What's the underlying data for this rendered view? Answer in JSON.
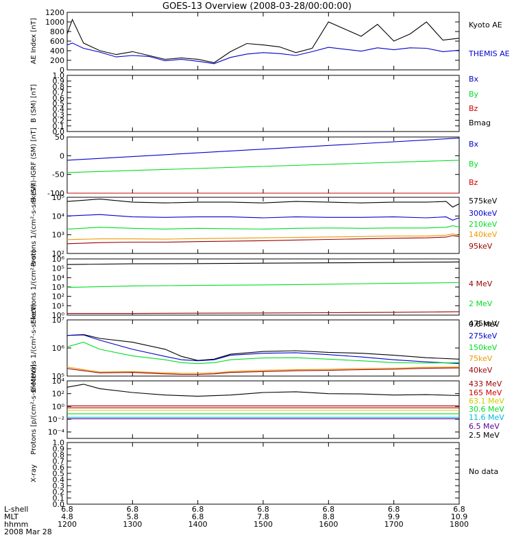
{
  "title": "GOES-13 Overview (2008-03-28/00:00:00)",
  "colors": {
    "black": "#000000",
    "blue": "#0000cc",
    "green": "#00dd22",
    "red": "#cc0000",
    "darkred": "#990000",
    "orange": "#ee9900",
    "yellow": "#cccc00",
    "cyan": "#00bbdd",
    "purple": "#550099",
    "navy": "#000099"
  },
  "x_axis": {
    "row_labels": [
      "L-shell",
      "MLT",
      "hhmm",
      "2008 Mar 28"
    ],
    "ticks": [
      {
        "lshell": "6.8",
        "mlt": "4.8",
        "hhmm": "1200"
      },
      {
        "lshell": "6.8",
        "mlt": "5.8",
        "hhmm": "1300"
      },
      {
        "lshell": "6.8",
        "mlt": "6.8",
        "hhmm": "1400"
      },
      {
        "lshell": "6.8",
        "mlt": "7.8",
        "hhmm": "1500"
      },
      {
        "lshell": "6.8",
        "mlt": "8.8",
        "hhmm": "1600"
      },
      {
        "lshell": "6.8",
        "mlt": "9.9",
        "hhmm": "1700"
      },
      {
        "lshell": "6.8",
        "mlt": "10.9",
        "hhmm": "1800"
      }
    ]
  },
  "chart_data": [
    {
      "type": "line",
      "ylabel": "AE Index [nT]",
      "ylim": [
        0,
        1200
      ],
      "log": false,
      "ytick_values": [
        0,
        200,
        400,
        600,
        800,
        1000,
        1200
      ],
      "ytick_labels": [
        "0",
        "200",
        "400",
        "600",
        "800",
        "1000",
        "1200"
      ],
      "x": [
        12.0,
        12.08,
        12.25,
        12.5,
        12.75,
        13.0,
        13.25,
        13.5,
        13.75,
        14.0,
        14.25,
        14.5,
        14.75,
        15.0,
        15.25,
        15.5,
        15.75,
        16.0,
        16.25,
        16.5,
        16.75,
        17.0,
        17.25,
        17.5,
        17.75,
        18.0
      ],
      "series": [
        {
          "name": "Kyoto AE",
          "color": "black",
          "values": [
            750,
            1050,
            560,
            400,
            320,
            380,
            300,
            220,
            250,
            220,
            150,
            380,
            550,
            520,
            480,
            360,
            450,
            1000,
            850,
            700,
            950,
            600,
            750,
            1000,
            620,
            660
          ]
        },
        {
          "name": "THEMIS AE",
          "color": "blue",
          "values": [
            520,
            560,
            450,
            370,
            270,
            300,
            280,
            190,
            220,
            180,
            130,
            260,
            330,
            360,
            340,
            300,
            380,
            470,
            430,
            390,
            460,
            420,
            460,
            450,
            380,
            410
          ]
        }
      ]
    },
    {
      "type": "line",
      "ylabel": "B (SM) [nT]",
      "ylim": [
        0,
        1.0
      ],
      "log": false,
      "ytick_values": [
        0,
        0.1,
        0.2,
        0.3,
        0.4,
        0.5,
        0.6,
        0.7,
        0.8,
        0.9,
        1.0
      ],
      "ytick_labels": [
        "0.0",
        "0.1",
        "0.2",
        "0.3",
        "0.4",
        "0.5",
        "0.6",
        "0.7",
        "0.8",
        "0.9",
        "1.0"
      ],
      "x": [],
      "no_data": true,
      "series": [
        {
          "name": "Bx",
          "color": "blue",
          "values": []
        },
        {
          "name": "By",
          "color": "green",
          "values": []
        },
        {
          "name": "Bz",
          "color": "red",
          "values": []
        },
        {
          "name": "Bmag",
          "color": "black",
          "values": []
        }
      ]
    },
    {
      "type": "line",
      "ylabel": "B (SM)-IGRF (SM) [nT]",
      "ylim": [
        -100,
        50
      ],
      "log": false,
      "ytick_values": [
        -100,
        -50,
        0,
        50
      ],
      "ytick_labels": [
        "-100",
        "-50",
        "0",
        "50"
      ],
      "x": [
        12.0,
        18.0
      ],
      "series": [
        {
          "name": "Bx",
          "color": "blue",
          "values": [
            -12,
            47
          ]
        },
        {
          "name": "By",
          "color": "green",
          "values": [
            -45,
            -12
          ]
        },
        {
          "name": "Bz",
          "color": "red",
          "values": [
            -101,
            -101
          ]
        }
      ]
    },
    {
      "type": "line",
      "ylabel": "Protons 1/(cm²-s-sr-keV)",
      "ylim": [
        100,
        100000
      ],
      "log": true,
      "ytick_values": [
        100,
        1000,
        10000,
        100000
      ],
      "ytick_labels": [
        "10²",
        "10³",
        "10⁴",
        "10⁵"
      ],
      "x": [
        12.0,
        12.5,
        13.0,
        13.5,
        14.0,
        14.5,
        15.0,
        15.5,
        16.0,
        16.5,
        17.0,
        17.5,
        17.8,
        17.9,
        18.0
      ],
      "series": [
        {
          "name": "575keV",
          "color": "black",
          "values": [
            60000,
            80000,
            55000,
            50000,
            55000,
            55000,
            50000,
            60000,
            55000,
            50000,
            55000,
            55000,
            60000,
            30000,
            45000
          ]
        },
        {
          "name": "300keV",
          "color": "blue",
          "values": [
            10000,
            12000,
            9000,
            8500,
            9000,
            9000,
            8000,
            9000,
            8500,
            8500,
            9000,
            8000,
            9000,
            6000,
            8000
          ]
        },
        {
          "name": "210keV",
          "color": "green",
          "values": [
            2000,
            2500,
            2200,
            2000,
            2200,
            2100,
            2000,
            2200,
            2300,
            2200,
            2300,
            2300,
            2500,
            3000,
            2600
          ]
        },
        {
          "name": "140keV",
          "color": "orange",
          "values": [
            550,
            600,
            600,
            580,
            620,
            650,
            680,
            720,
            760,
            800,
            850,
            850,
            950,
            1100,
            900
          ]
        },
        {
          "name": "95keV",
          "color": "darkred",
          "values": [
            330,
            380,
            400,
            400,
            430,
            450,
            480,
            520,
            560,
            600,
            650,
            680,
            750,
            900,
            800
          ]
        }
      ]
    },
    {
      "type": "line",
      "ylabel": "Electrons 1/(cm²-s-sr)",
      "ylim": [
        1,
        1000000
      ],
      "log": true,
      "ytick_values": [
        1,
        10,
        100,
        1000,
        10000,
        100000,
        1000000
      ],
      "ytick_labels": [
        "10⁰",
        "10¹",
        "10²",
        "10³",
        "10⁴",
        "10⁵",
        "10⁶"
      ],
      "x": [
        12.0,
        13.0,
        14.0,
        15.0,
        16.0,
        17.0,
        18.0
      ],
      "series": [
        {
          "name": "4 MeV",
          "color": "darkred",
          "values": [
            1.5,
            1.5,
            1.6,
            1.7,
            1.8,
            2.0,
            2.3
          ]
        },
        {
          "name": "2 MeV",
          "color": "green",
          "values": [
            900,
            1300,
            1500,
            1700,
            2000,
            2500,
            3000
          ]
        },
        {
          "name": "0.6 MeV",
          "color": "black",
          "values": [
            250000,
            300000,
            320000,
            350000,
            380000,
            420000,
            480000
          ]
        }
      ]
    },
    {
      "type": "line",
      "ylabel": "Electrons 1/(cm²-s-sr-keV)",
      "ylim": [
        100000,
        10000000
      ],
      "log": true,
      "ytick_values": [
        100000,
        1000000,
        10000000
      ],
      "ytick_labels": [
        "10⁵",
        "10⁶",
        "10⁷"
      ],
      "x": [
        12.0,
        12.25,
        12.5,
        13.0,
        13.5,
        13.75,
        14.0,
        14.25,
        14.5,
        15.0,
        15.5,
        16.0,
        16.5,
        17.0,
        17.5,
        18.0
      ],
      "series": [
        {
          "name": "475keV",
          "color": "black",
          "values": [
            2800000,
            3000000,
            2200000,
            1600000,
            900000,
            500000,
            360000,
            400000,
            600000,
            750000,
            800000,
            700000,
            650000,
            550000,
            450000,
            400000
          ]
        },
        {
          "name": "275keV",
          "color": "blue",
          "values": [
            2800000,
            2900000,
            1900000,
            900000,
            500000,
            380000,
            350000,
            380000,
            550000,
            650000,
            680000,
            580000,
            480000,
            380000,
            320000,
            280000
          ]
        },
        {
          "name": "150keV",
          "color": "green",
          "values": [
            1100000,
            1600000,
            900000,
            520000,
            380000,
            300000,
            280000,
            300000,
            380000,
            440000,
            450000,
            400000,
            350000,
            300000,
            290000,
            300000
          ]
        },
        {
          "name": "75keV",
          "color": "orange",
          "values": [
            210000,
            170000,
            140000,
            145000,
            130000,
            125000,
            125000,
            130000,
            145000,
            160000,
            170000,
            175000,
            185000,
            190000,
            205000,
            210000
          ]
        },
        {
          "name": "40keV",
          "color": "darkred",
          "values": [
            185000,
            155000,
            130000,
            135000,
            120000,
            115000,
            115000,
            120000,
            135000,
            145000,
            155000,
            160000,
            170000,
            175000,
            190000,
            195000
          ]
        }
      ]
    },
    {
      "type": "line",
      "ylabel": "Protons [p/(cm²-s-sr-MeV)]",
      "ylim": [
        1e-05,
        10000
      ],
      "log": true,
      "ytick_values": [
        0.0001,
        0.01,
        1,
        100,
        10000
      ],
      "ytick_labels": [
        "10⁻⁴",
        "10⁻²",
        "10⁰",
        "10²",
        "10⁴"
      ],
      "x": [
        12.0,
        12.25,
        12.5,
        13.0,
        13.5,
        14.0,
        14.5,
        15.0,
        15.5,
        16.0,
        16.5,
        17.0,
        17.5,
        18.0
      ],
      "series": [
        {
          "name": "433 MeV",
          "color": "darkred",
          "values": [
            1.2,
            1.2,
            1.2,
            1.2,
            1.2,
            1.2,
            1.2,
            1.2,
            1.2,
            1.2,
            1.2,
            1.2,
            1.2,
            1.2
          ]
        },
        {
          "name": "165 MeV",
          "color": "red",
          "values": [
            0.6,
            0.6,
            0.6,
            0.6,
            0.6,
            0.6,
            0.6,
            0.6,
            0.6,
            0.6,
            0.6,
            0.6,
            0.6,
            0.6
          ]
        },
        {
          "name": "63.1 MeV",
          "color": "yellow",
          "values": [
            0.25,
            0.25,
            0.25,
            0.25,
            0.25,
            0.25,
            0.25,
            0.25,
            0.25,
            0.25,
            0.25,
            0.25,
            0.25,
            0.25
          ]
        },
        {
          "name": "30.6 MeV",
          "color": "green",
          "values": [
            0.07,
            0.07,
            0.07,
            0.07,
            0.07,
            0.07,
            0.07,
            0.07,
            0.07,
            0.07,
            0.07,
            0.07,
            0.07,
            0.07
          ]
        },
        {
          "name": "11.6 MeV",
          "color": "cyan",
          "values": [
            0.02,
            0.02,
            0.02,
            0.02,
            0.02,
            0.02,
            0.02,
            0.02,
            0.02,
            0.02,
            0.02,
            0.02,
            0.02,
            0.02
          ]
        },
        {
          "name": "6.5 MeV",
          "color": "purple",
          "values": [
            0.012,
            0.012,
            0.012,
            0.012,
            0.012,
            0.012,
            0.012,
            0.012,
            0.012,
            0.012,
            0.012,
            0.012,
            0.012,
            0.012
          ]
        },
        {
          "name": "2.5 MeV",
          "color": "black",
          "values": [
            1000,
            3000,
            600,
            150,
            60,
            40,
            60,
            150,
            200,
            100,
            90,
            60,
            70,
            50
          ]
        }
      ]
    },
    {
      "type": "line",
      "ylabel": "X-ray",
      "ylim": [
        0,
        1.0
      ],
      "log": false,
      "ytick_values": [
        0,
        0.1,
        0.2,
        0.3,
        0.4,
        0.5,
        0.6,
        0.7,
        0.8,
        0.9,
        1.0
      ],
      "ytick_labels": [
        "0.0",
        "0.1",
        "0.2",
        "0.3",
        "0.4",
        "0.5",
        "0.6",
        "0.7",
        "0.8",
        "0.9",
        "1.0"
      ],
      "x": [],
      "no_data": true,
      "note": "No data",
      "series": []
    }
  ]
}
